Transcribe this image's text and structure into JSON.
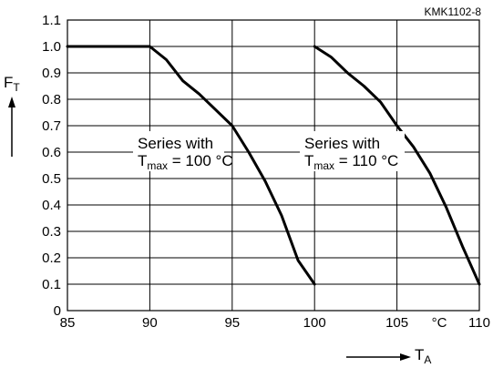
{
  "chart_data": {
    "type": "line",
    "code_label": "KMK1102-8",
    "ylabel": {
      "main": "F",
      "sub": "T"
    },
    "xlabel": {
      "main": "T",
      "sub": "A"
    },
    "x_unit_label": "°C",
    "xlim": [
      85,
      110
    ],
    "ylim": [
      0,
      1.1
    ],
    "x_ticks": [
      "85",
      "90",
      "95",
      "100",
      "105",
      "110"
    ],
    "y_ticks": [
      "0",
      "0.1",
      "0.2",
      "0.3",
      "0.4",
      "0.5",
      "0.6",
      "0.7",
      "0.8",
      "0.9",
      "1.0",
      "1.1"
    ],
    "grid": true,
    "series": [
      {
        "points": [
          [
            85,
            1.0
          ],
          [
            90,
            1.0
          ],
          [
            91,
            0.95
          ],
          [
            92,
            0.87
          ],
          [
            93,
            0.82
          ],
          [
            94,
            0.76
          ],
          [
            95,
            0.7
          ],
          [
            96,
            0.6
          ],
          [
            97,
            0.49
          ],
          [
            98,
            0.36
          ],
          [
            99,
            0.19
          ],
          [
            100,
            0.1
          ]
        ]
      },
      {
        "points": [
          [
            100,
            1.0
          ],
          [
            101,
            0.96
          ],
          [
            102,
            0.9
          ],
          [
            103,
            0.85
          ],
          [
            104,
            0.79
          ],
          [
            105,
            0.7
          ],
          [
            106,
            0.62
          ],
          [
            107,
            0.52
          ],
          [
            108,
            0.39
          ],
          [
            109,
            0.24
          ],
          [
            110,
            0.1
          ]
        ]
      }
    ],
    "annotations": [
      {
        "line1": "Series with",
        "t": "T",
        "sub": "max",
        "rest": " = 100 °C"
      },
      {
        "line1": "Series with",
        "t": "T",
        "sub": "max",
        "rest": " = 110 °C"
      }
    ]
  }
}
